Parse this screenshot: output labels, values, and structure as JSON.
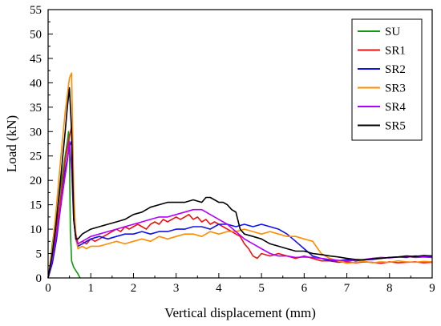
{
  "chart_data": {
    "type": "line",
    "xlabel": "Vertical displacement (mm)",
    "ylabel": "Load (kN)",
    "xlim": [
      0,
      9
    ],
    "ylim": [
      0,
      55
    ],
    "xticks": [
      0,
      1,
      2,
      3,
      4,
      5,
      6,
      7,
      8,
      9
    ],
    "yticks": [
      0,
      5,
      10,
      15,
      20,
      25,
      30,
      35,
      40,
      45,
      50,
      55
    ],
    "grid": false,
    "legend": "top-right",
    "series": [
      {
        "name": "SU",
        "color": "#119911",
        "x": [
          0,
          0.05,
          0.1,
          0.15,
          0.2,
          0.25,
          0.3,
          0.35,
          0.4,
          0.45,
          0.48,
          0.5,
          0.52,
          0.55,
          0.6,
          0.65,
          0.7,
          0.75
        ],
        "y": [
          0,
          3,
          7,
          10,
          13,
          16,
          19,
          22,
          25,
          28,
          30,
          26,
          10,
          3.5,
          2.2,
          1.5,
          0.8,
          0
        ]
      },
      {
        "name": "SR1",
        "color": "#ee1111",
        "x": [
          0,
          0.1,
          0.2,
          0.3,
          0.4,
          0.5,
          0.55,
          0.6,
          0.65,
          0.7,
          0.8,
          0.9,
          1.0,
          1.1,
          1.2,
          1.3,
          1.4,
          1.5,
          1.6,
          1.7,
          1.8,
          1.9,
          2.0,
          2.1,
          2.2,
          2.3,
          2.4,
          2.5,
          2.6,
          2.7,
          2.8,
          2.9,
          3.0,
          3.1,
          3.2,
          3.3,
          3.4,
          3.5,
          3.6,
          3.7,
          3.8,
          3.9,
          4.0,
          4.1,
          4.2,
          4.3,
          4.4,
          4.5,
          4.6,
          4.7,
          4.8,
          4.9,
          5.0,
          5.2,
          5.4,
          5.6,
          5.8,
          6.0,
          6.2,
          6.4,
          6.6,
          6.8,
          7.0,
          7.2,
          7.4,
          7.6,
          7.8,
          8.0,
          8.2,
          8.4,
          8.6,
          8.8,
          9.0
        ],
        "y": [
          0,
          4,
          10,
          17,
          24,
          29,
          31,
          15,
          9,
          7,
          7.5,
          7,
          8,
          7.5,
          8,
          8.5,
          9,
          9.5,
          10,
          9.5,
          10.5,
          10,
          10.5,
          11,
          10.5,
          10,
          11,
          11.5,
          11,
          12,
          11.5,
          12,
          12.5,
          12,
          12.5,
          13,
          12,
          12.5,
          11.5,
          12,
          11,
          11.5,
          11,
          10.5,
          10,
          9.5,
          9,
          8.5,
          7,
          6,
          4.5,
          4,
          5,
          4.5,
          5,
          4.5,
          4,
          4.5,
          4,
          3.5,
          3.5,
          3.2,
          3.3,
          3.1,
          3.3,
          3.2,
          3.0,
          3.3,
          3.1,
          3.2,
          3.3,
          3.1,
          3.2
        ]
      },
      {
        "name": "SR2",
        "color": "#1111ee",
        "x": [
          0,
          0.1,
          0.2,
          0.3,
          0.4,
          0.5,
          0.55,
          0.6,
          0.65,
          0.7,
          0.8,
          0.9,
          1.0,
          1.2,
          1.4,
          1.6,
          1.8,
          2.0,
          2.2,
          2.4,
          2.6,
          2.8,
          3.0,
          3.2,
          3.4,
          3.6,
          3.8,
          4.0,
          4.2,
          4.4,
          4.6,
          4.8,
          5.0,
          5.2,
          5.4,
          5.6,
          5.8,
          6.0,
          6.2,
          6.4,
          6.6,
          6.8,
          7.0,
          7.2,
          7.4,
          7.6,
          7.8,
          8.0,
          8.2,
          8.4,
          8.6,
          8.8,
          9.0
        ],
        "y": [
          0,
          3,
          8,
          15,
          22,
          27,
          28,
          13,
          8,
          6.5,
          7,
          7.5,
          8,
          8.5,
          8,
          8.5,
          9,
          9,
          9.5,
          9,
          9.5,
          9.5,
          10,
          10,
          10.5,
          10.5,
          10,
          11,
          11,
          10.5,
          11,
          10.5,
          11,
          10.5,
          10,
          9,
          7.5,
          6,
          4.5,
          4,
          3.5,
          3.5,
          3.8,
          3.5,
          3.7,
          3.8,
          4.0,
          4.2,
          4.3,
          4.2,
          4.5,
          4.4,
          4.5
        ]
      },
      {
        "name": "SR3",
        "color": "#ff8c00",
        "x": [
          0,
          0.1,
          0.2,
          0.3,
          0.4,
          0.5,
          0.55,
          0.6,
          0.65,
          0.7,
          0.8,
          0.9,
          1.0,
          1.2,
          1.4,
          1.6,
          1.8,
          2.0,
          2.2,
          2.4,
          2.6,
          2.8,
          3.0,
          3.2,
          3.4,
          3.6,
          3.8,
          4.0,
          4.2,
          4.4,
          4.6,
          4.8,
          5.0,
          5.2,
          5.4,
          5.6,
          5.8,
          6.0,
          6.2,
          6.4,
          6.6,
          6.8,
          7.0,
          7.2,
          7.4,
          7.6,
          7.8,
          8.0,
          8.2,
          8.4,
          8.6,
          8.8,
          9.0
        ],
        "y": [
          0,
          6,
          15,
          25,
          34,
          41,
          42,
          18,
          8,
          6,
          6.5,
          6,
          6.5,
          6.5,
          7,
          7.5,
          7,
          7.5,
          8,
          7.5,
          8.5,
          8,
          8.5,
          9,
          9,
          8.5,
          9.5,
          9,
          9.5,
          9.5,
          10,
          9.5,
          9,
          9.5,
          9,
          8.5,
          8.5,
          8,
          7.5,
          5,
          4,
          3.5,
          3.0,
          3.2,
          3.4,
          3.1,
          3.3,
          3.2,
          3.5,
          3.3,
          3.2,
          3.4,
          3.3
        ]
      },
      {
        "name": "SR4",
        "color": "#b200ff",
        "x": [
          0,
          0.1,
          0.2,
          0.3,
          0.4,
          0.45,
          0.5,
          0.55,
          0.6,
          0.65,
          0.7,
          0.8,
          0.9,
          1.0,
          1.2,
          1.4,
          1.6,
          1.8,
          2.0,
          2.2,
          2.4,
          2.6,
          2.8,
          3.0,
          3.2,
          3.4,
          3.6,
          3.8,
          4.0,
          4.2,
          4.4,
          4.6,
          4.8,
          5.0,
          5.2,
          5.4,
          5.6,
          5.8,
          6.0,
          6.2,
          6.4,
          6.6,
          6.8,
          7.0,
          7.2,
          7.4,
          7.6,
          7.8,
          8.0,
          8.2,
          8.4,
          8.6,
          8.8,
          9.0
        ],
        "y": [
          0,
          4,
          9,
          15,
          21,
          24,
          28,
          22,
          12,
          8,
          7,
          7.5,
          8,
          8.5,
          9,
          9.5,
          10,
          10.5,
          11,
          11.5,
          12,
          12.5,
          12.5,
          13,
          13.5,
          14,
          14,
          13,
          12,
          11,
          9.5,
          8,
          7,
          6,
          5,
          4.5,
          4.5,
          4.2,
          4.3,
          4.2,
          4.0,
          3.8,
          3.6,
          3.5,
          3.6,
          3.8,
          4.0,
          4.2,
          4.1,
          4.3,
          4.4,
          4.2,
          4.3,
          4.2
        ]
      },
      {
        "name": "SR5",
        "color": "#000000",
        "x": [
          0,
          0.1,
          0.2,
          0.3,
          0.4,
          0.45,
          0.5,
          0.55,
          0.6,
          0.65,
          0.7,
          0.8,
          0.9,
          1.0,
          1.2,
          1.4,
          1.6,
          1.8,
          2.0,
          2.2,
          2.4,
          2.6,
          2.8,
          3.0,
          3.2,
          3.4,
          3.6,
          3.7,
          3.8,
          3.9,
          4.0,
          4.1,
          4.2,
          4.3,
          4.4,
          4.5,
          4.6,
          4.8,
          5.0,
          5.2,
          5.4,
          5.6,
          5.8,
          6.0,
          6.2,
          6.4,
          6.6,
          6.8,
          7.0,
          7.2,
          7.4,
          7.6,
          7.8,
          8.0,
          8.2,
          8.4,
          8.6,
          8.8,
          9.0
        ],
        "y": [
          0,
          5,
          12,
          21,
          30,
          35,
          39,
          30,
          12,
          8,
          8,
          9,
          9.5,
          10,
          10.5,
          11,
          11.5,
          12,
          13,
          13.5,
          14.5,
          15,
          15.5,
          15.5,
          15.5,
          16,
          15.5,
          16.5,
          16.5,
          16,
          15.5,
          15.5,
          15,
          14,
          13.5,
          10,
          9,
          8.5,
          8,
          7,
          6.5,
          6,
          5.5,
          5.5,
          5,
          4.8,
          4.5,
          4.3,
          4.0,
          3.8,
          3.7,
          3.9,
          4.0,
          4.2,
          4.3,
          4.5,
          4.4,
          4.6,
          4.5
        ]
      }
    ]
  }
}
